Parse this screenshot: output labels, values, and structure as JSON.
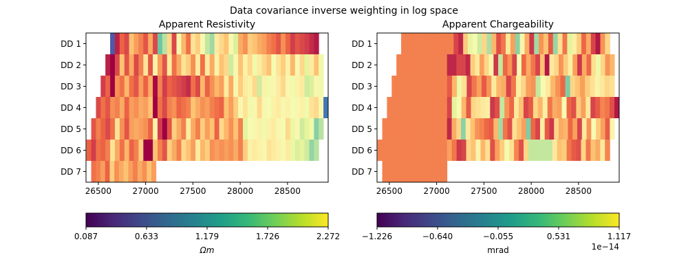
{
  "suptitle": "Data covariance inverse weighting in log space",
  "colors": {
    "sequence": [
      "#4e5aa6",
      "#3d84b8",
      "#4fa3b0",
      "#6cc4a4",
      "#97d5a4",
      "#bfe5a0",
      "#e5f49b",
      "#f8fcb4",
      "#fee79b",
      "#fdc373",
      "#f89a59",
      "#ee6544",
      "#d13c4b",
      "#9e0142"
    ],
    "viridis": [
      "#440154",
      "#482878",
      "#3e4989",
      "#31688e",
      "#26828e",
      "#1f9e89",
      "#35b779",
      "#6ece58",
      "#b5de2b",
      "#fde725"
    ]
  },
  "chart_data": [
    {
      "type": "heatmap",
      "title": "Apparent Resistivity",
      "ylabel_ticks": [
        "DD 1",
        "DD 2",
        "DD 3",
        "DD 4",
        "DD 5",
        "DD 6",
        "DD 7"
      ],
      "xlim": [
        26370,
        28930
      ],
      "xticks": [
        "26500",
        "27000",
        "27500",
        "28000",
        "28500"
      ],
      "xtick_values": [
        26500,
        27000,
        27500,
        28000,
        28500
      ],
      "cell_width": 50,
      "rows": [
        {
          "label": "DD 1",
          "x_start": 26625,
          "x_end": 28830,
          "values": [
            0.087,
            2.18,
            1.95,
            2.05,
            1.6,
            1.75,
            1.85,
            2.0,
            1.7,
            2.05,
            0.6,
            0.9,
            1.5,
            2.05,
            1.3,
            1.65,
            1.9,
            1.45,
            1.55,
            1.3,
            0.95,
            0.8,
            1.4,
            1.5,
            1.6,
            1.3,
            1.05,
            1.7,
            1.8,
            1.55,
            1.6,
            1.7,
            1.75,
            1.85,
            1.9,
            2.0,
            1.8,
            1.95,
            2.1,
            2.0,
            2.05,
            2.1,
            2.15,
            2.2
          ]
        },
        {
          "label": "DD 2",
          "x_start": 26575,
          "x_end": 28880,
          "values": [
            2.18,
            2.5,
            2.05,
            1.6,
            2.0,
            1.7,
            2.05,
            1.85,
            1.45,
            2.0,
            1.35,
            1.75,
            2.0,
            1.4,
            1.9,
            1.7,
            1.45,
            1.55,
            1.8,
            1.4,
            1.9,
            1.4,
            1.7,
            1.35,
            1.6,
            1.5,
            1.0,
            1.3,
            1.6,
            1.35,
            1.5,
            1.2,
            1.4,
            1.5,
            1.6,
            1.25,
            1.45,
            1.55,
            1.35,
            1.65,
            1.3,
            1.5,
            1.1,
            1.4,
            1.6,
            1.2
          ]
        },
        {
          "label": "DD 3",
          "x_start": 26525,
          "x_end": 28880,
          "values": [
            2.1,
            1.95,
            2.35,
            1.8,
            1.9,
            1.65,
            1.9,
            2.0,
            1.75,
            1.95,
            1.7,
            2.25,
            1.85,
            2.1,
            1.95,
            2.0,
            2.05,
            2.1,
            2.15,
            1.9,
            2.05,
            1.65,
            1.95,
            1.8,
            1.65,
            1.75,
            1.4,
            1.7,
            1.3,
            1.55,
            1.4,
            1.35,
            1.5,
            1.0,
            1.35,
            1.2,
            1.3,
            1.4,
            1.5,
            1.3,
            1.2,
            1.35,
            1.4,
            1.0,
            1.05,
            1.3,
            1.2
          ]
        },
        {
          "label": "DD 4",
          "x_start": 26475,
          "x_end": 28930,
          "values": [
            2.05,
            1.9,
            2.0,
            1.8,
            1.85,
            1.7,
            1.95,
            1.75,
            1.8,
            1.7,
            1.75,
            1.6,
            2.3,
            1.9,
            2.05,
            1.85,
            1.8,
            1.95,
            1.9,
            1.85,
            1.6,
            1.7,
            1.8,
            1.75,
            1.85,
            1.9,
            1.95,
            1.6,
            1.75,
            1.55,
            1.3,
            1.45,
            1.2,
            1.3,
            1.5,
            1.3,
            1.25,
            1.35,
            1.4,
            1.3,
            1.35,
            1.25,
            1.3,
            1.35,
            1.2,
            1.45,
            1.5,
            1.3,
            0.2
          ]
        },
        {
          "label": "DD 5",
          "x_start": 26425,
          "x_end": 28880,
          "values": [
            2.0,
            1.85,
            1.95,
            2.05,
            1.9,
            1.45,
            1.8,
            2.0,
            1.75,
            1.7,
            1.75,
            1.8,
            1.95,
            1.35,
            2.1,
            2.35,
            2.0,
            1.55,
            1.7,
            1.85,
            1.4,
            1.7,
            1.85,
            1.55,
            1.75,
            1.6,
            1.95,
            1.5,
            1.65,
            1.8,
            1.6,
            1.85,
            1.1,
            1.25,
            1.3,
            1.35,
            1.2,
            1.35,
            1.4,
            1.3,
            1.25,
            1.5,
            1.15,
            1.3,
            1.0,
            1.1,
            1.2,
            0.7,
            0.9
          ]
        },
        {
          "label": "DD 6",
          "x_start": 26375,
          "x_end": 28830,
          "values": [
            1.95,
            2.1,
            1.9,
            1.95,
            1.85,
            1.45,
            1.7,
            1.9,
            1.65,
            1.95,
            1.85,
            1.55,
            2.3,
            2.45,
            1.6,
            1.85,
            2.0,
            1.55,
            1.7,
            1.85,
            1.5,
            1.6,
            1.75,
            1.4,
            1.65,
            1.55,
            1.8,
            1.75,
            1.8,
            1.75,
            1.8,
            1.7,
            1.85,
            1.55,
            1.35,
            1.4,
            1.35,
            1.3,
            1.45,
            1.4,
            1.35,
            1.3,
            1.4,
            1.15,
            1.05,
            1.1,
            1.0,
            0.75,
            0.9
          ]
        },
        {
          "label": "DD 7",
          "x_start": 26425,
          "x_end": 27110,
          "values": [
            1.9,
            1.85,
            1.75,
            1.95,
            1.55,
            1.8,
            1.7,
            1.6,
            1.75,
            1.85,
            1.7,
            1.8,
            1.6,
            1.75
          ]
        }
      ],
      "colorbar": {
        "label": "Ωm",
        "ticks": [
          "0.087",
          "0.633",
          "1.179",
          "1.726",
          "2.272"
        ],
        "min": 0.087,
        "max": 2.272,
        "offset_text": ""
      }
    },
    {
      "type": "heatmap",
      "title": "Apparent Chargeability",
      "ylabel_ticks": [
        "DD 1",
        "DD 2",
        "DD 3",
        "DD 4",
        "DD 5",
        "DD 6",
        "DD 7"
      ],
      "xlim": [
        26370,
        28930
      ],
      "xticks": [
        "26500",
        "27000",
        "27500",
        "28000",
        "28500"
      ],
      "xtick_values": [
        26500,
        27000,
        27500,
        28000,
        28500
      ],
      "cell_width": 50,
      "rows": [
        {
          "label": "DD 1",
          "x_start": 26625,
          "x_end": 28830,
          "values": [
            0.66,
            0.66,
            0.66,
            0.66,
            0.66,
            0.66,
            0.66,
            0.66,
            0.66,
            0.66,
            0.66,
            0.66,
            0.66,
            0.66,
            0.66,
            0.66,
            0.66,
            0.66,
            0.66,
            0.66,
            0.66,
            0.66,
            0.66,
            0.66,
            0.66,
            0.66,
            0.66,
            0.66,
            0.66,
            0.66,
            0.66,
            0.66,
            0.66,
            0.66,
            0.66,
            0.66,
            0.66,
            0.66,
            0.66,
            0.66,
            0.66,
            0.66,
            0.66,
            0.66
          ]
        },
        {
          "label": "DD 2",
          "x_start": 26575,
          "x_end": 28880,
          "values": [
            0.66,
            0.66,
            0.66,
            0.66,
            0.66,
            0.66,
            0.66,
            0.66,
            0.66,
            0.66,
            0.66,
            0.66,
            0.66,
            0.66,
            0.66,
            0.66,
            0.66,
            0.66,
            0.66,
            0.66,
            0.66,
            0.66,
            0.66,
            0.66,
            0.66,
            0.66,
            0.66,
            0.66,
            0.66,
            0.66,
            0.66,
            0.66,
            0.66,
            0.66,
            0.66,
            0.66,
            0.66,
            0.66,
            0.66,
            0.66,
            0.66,
            0.66,
            0.66,
            0.66,
            0.66,
            0.66
          ]
        },
        {
          "label": "DD 3",
          "x_start": 26525,
          "x_end": 28880,
          "values": [
            0.66,
            0.66,
            0.66,
            0.66,
            0.66,
            0.66,
            0.66,
            0.66,
            0.66,
            0.66,
            0.66,
            0.66,
            0.66,
            0.66,
            0.66,
            0.66,
            0.66,
            0.66,
            0.66,
            0.66,
            0.66,
            0.66,
            0.66,
            0.66,
            0.66,
            0.66,
            0.66,
            0.66,
            0.66,
            0.66,
            0.66,
            0.66,
            0.66,
            0.66,
            0.66,
            0.66,
            0.66,
            0.66,
            0.66,
            0.66,
            0.66,
            0.66,
            0.66,
            0.66,
            0.66,
            0.66,
            0.66
          ]
        },
        {
          "label": "DD 4",
          "x_start": 26475,
          "x_end": 28930,
          "values": [
            0.66,
            0.66,
            0.66,
            0.66,
            0.66,
            0.66,
            0.66,
            0.66,
            0.66,
            0.66,
            0.66,
            0.66,
            0.66,
            0.66,
            0.66,
            0.66,
            0.66,
            0.66,
            0.66,
            0.66,
            0.66,
            0.66,
            0.66,
            0.66,
            0.66,
            0.66,
            0.66,
            0.66,
            0.66,
            0.66,
            0.66,
            0.66,
            0.66,
            0.66,
            0.66,
            0.66,
            0.66,
            0.66,
            0.66,
            0.66,
            0.66,
            0.66,
            0.66,
            0.66,
            0.66,
            0.66,
            0.66,
            0.66,
            0.66
          ]
        },
        {
          "label": "DD 5",
          "x_start": 26425,
          "x_end": 28880,
          "values": [
            0.66,
            0.66,
            0.66,
            0.66,
            0.66,
            0.66,
            0.66,
            0.66,
            0.66,
            0.66,
            0.66,
            0.66,
            0.66,
            0.66,
            0.66,
            0.66,
            0.66,
            0.66,
            0.66,
            0.66,
            0.66,
            0.66,
            0.66,
            0.66,
            0.66,
            0.66,
            0.66,
            0.66,
            0.66,
            0.66,
            0.66,
            0.66,
            0.66,
            0.66,
            0.66,
            0.66,
            0.66,
            0.66,
            0.66,
            0.66,
            0.66,
            0.66,
            0.66,
            0.66,
            0.66,
            0.66,
            0.66,
            0.66,
            0.66
          ]
        },
        {
          "label": "DD 6",
          "x_start": 26375,
          "x_end": 28830,
          "values": [
            0.66,
            0.66,
            0.66,
            0.66,
            0.66,
            0.66,
            0.66,
            0.66,
            0.66,
            0.66,
            0.66,
            0.66,
            0.66,
            0.66,
            0.66,
            0.66,
            0.66,
            0.66,
            0.66,
            0.66,
            0.66,
            0.66,
            0.66,
            0.66,
            0.66,
            0.66,
            0.66,
            0.66,
            0.66,
            0.66,
            0.66,
            0.66,
            0.66,
            0.66,
            0.66,
            0.66,
            0.66,
            0.66,
            0.66,
            0.66,
            0.66,
            0.66,
            0.66,
            0.66,
            0.66,
            0.66,
            0.66,
            0.66,
            0.66
          ]
        },
        {
          "label": "DD 7",
          "x_start": 26425,
          "x_end": 27110,
          "values": [
            0.66,
            0.66,
            0.66,
            0.66,
            0.66,
            0.66,
            0.66,
            0.66,
            0.66,
            0.66,
            0.66,
            0.66,
            0.66,
            0.66
          ]
        }
      ],
      "overlay_bands": [
        {
          "row": "DD 1",
          "x_start": 27180,
          "x_end": 28830,
          "values": [
            0.9,
            1.0,
            0.35,
            -0.1,
            0.0,
            -0.25,
            0.3,
            -0.4,
            0.45,
            0.85,
            0.7,
            0.2,
            0.55,
            -0.55,
            0.1,
            0.5,
            0.95,
            -0.45,
            0.6,
            0.4,
            0.8,
            -0.5,
            0.25,
            0.7,
            -0.15,
            0.15,
            0.35,
            0.75,
            0.5,
            0.9,
            1.05,
            0.6,
            0.3
          ]
        },
        {
          "row": "DD 2",
          "x_start": 27110,
          "x_end": 28880,
          "values": [
            1.0,
            1.0,
            0.9,
            0.9,
            1.0,
            0.35,
            0.2,
            0.55,
            0.3,
            0.1,
            0.95,
            -0.3,
            0.75,
            0.6,
            0.9,
            0.05,
            0.75,
            0.5,
            0.7,
            0.9,
            0.4,
            1.05,
            0.2,
            0.3,
            0.6,
            0.35,
            0.15,
            0.55,
            0.95,
            0.5,
            0.75,
            0.25,
            -0.05,
            0.3,
            0.6,
            0.45
          ]
        },
        {
          "row": "DD 3",
          "x_start": 27110,
          "x_end": 28880,
          "values": [
            0.8,
            0.45,
            -0.05,
            0.25,
            0.9,
            0.7,
            0.55,
            0.8,
            0.6,
            0.2,
            0.45,
            0.5,
            0.9,
            0.7,
            0.15,
            0.3,
            0.55,
            0.6,
            -0.3,
            0.05,
            0.2,
            0.45,
            0.6,
            0.75,
            -0.6,
            0.3,
            0.4,
            0.55,
            0.35,
            0.25,
            0.1,
            0.2,
            0.3,
            0.25
          ]
        },
        {
          "row": "DD 4",
          "x_start": 27110,
          "x_end": 28930,
          "values": [
            0.9,
            -0.15,
            0.05,
            0.45,
            0.8,
            0.3,
            0.25,
            0.2,
            0.15,
            0.95,
            0.85,
            -0.3,
            0.6,
            0.75,
            0.2,
            0.4,
            0.9,
            0.8,
            0.3,
            0.45,
            0.15,
            0.7,
            0.5,
            0.55,
            0.05,
            0.75,
            0.85,
            0.35,
            0.55,
            0.2,
            0.9,
            0.8,
            0.65,
            0.7,
            0.85,
            1.05
          ]
        },
        {
          "row": "DD 5",
          "x_start": 27110,
          "x_end": 28880,
          "values": [
            1.0,
            0.5,
            0.3,
            -0.55,
            0.2,
            0.4,
            0.6,
            0.65,
            0.75,
            0.8,
            0.45,
            -0.45,
            0.7,
            0.85,
            0.25,
            0.4,
            0.55,
            -0.6,
            0.75,
            0.9,
            0.15,
            0.8,
            0.95,
            0.3,
            0.5,
            0.45,
            0.75,
            0.55,
            0.9,
            0.2,
            0.6,
            0.05,
            0.35,
            0.55,
            0.8,
            0.1
          ]
        },
        {
          "row": "DD 6",
          "x_start": 27110,
          "x_end": 28830,
          "values": [
            0.55,
            0.7,
            0.95,
            0.9,
            0.3,
            0.4,
            0.1,
            0.45,
            0.25,
            0.85,
            0.55,
            0.35,
            0.0,
            0.25,
            0.65,
            0.85,
            0.3,
            -0.3,
            -0.3,
            -0.3,
            -0.3,
            -0.3,
            0.2,
            0.4,
            0.35,
            0.7,
            0.8,
            0.85,
            0.3,
            0.7,
            0.4,
            0.5,
            0.2,
            0.65
          ]
        }
      ],
      "colorbar": {
        "label": "mrad",
        "ticks": [
          "−1.226",
          "−0.640",
          "−0.055",
          "0.531",
          "1.117"
        ],
        "min": -1.226,
        "max": 1.117,
        "offset_text": "1e−14"
      }
    }
  ]
}
